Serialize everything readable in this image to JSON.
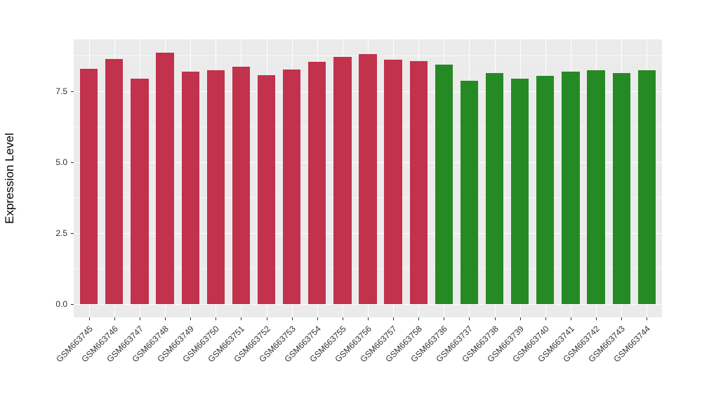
{
  "figure": {
    "background_color": "#FFFFFF",
    "panel_background_color": "#EBEBEB",
    "gridline_color": "#FFFFFF"
  },
  "y_axis": {
    "title": "Expression Level",
    "tick_labels": [
      "0.0",
      "2.5",
      "5.0",
      "7.5"
    ]
  },
  "chart_data": {
    "type": "bar",
    "title": "",
    "xlabel": "",
    "ylabel": "Expression Level",
    "ylim": [
      -0.47,
      9.33
    ],
    "y_major_ticks": [
      0,
      2.5,
      5,
      7.5
    ],
    "y_minor_ticks": [
      1.25,
      3.75,
      6.25,
      8.75
    ],
    "grid": true,
    "legend_position": "none",
    "bar_width_ratio": 0.7,
    "categories": [
      "GSM663745",
      "GSM663746",
      "GSM663747",
      "GSM663748",
      "GSM663749",
      "GSM663750",
      "GSM663751",
      "GSM663752",
      "GSM663753",
      "GSM663754",
      "GSM663755",
      "GSM663756",
      "GSM663757",
      "GSM663758",
      "GSM663736",
      "GSM663737",
      "GSM663738",
      "GSM663739",
      "GSM663740",
      "GSM663741",
      "GSM663742",
      "GSM663743",
      "GSM663744"
    ],
    "values": [
      8.3,
      8.63,
      7.94,
      8.87,
      8.2,
      8.23,
      8.37,
      8.07,
      8.26,
      8.53,
      8.7,
      8.82,
      8.61,
      8.57,
      8.44,
      7.87,
      8.13,
      7.95,
      8.05,
      8.18,
      8.24,
      8.15,
      8.24
    ],
    "groups": [
      {
        "name": "group-1",
        "color": "#C2324D",
        "first_index": 0,
        "count": 14
      },
      {
        "name": "group-2",
        "color": "#268A24",
        "first_index": 14,
        "count": 9
      }
    ]
  }
}
